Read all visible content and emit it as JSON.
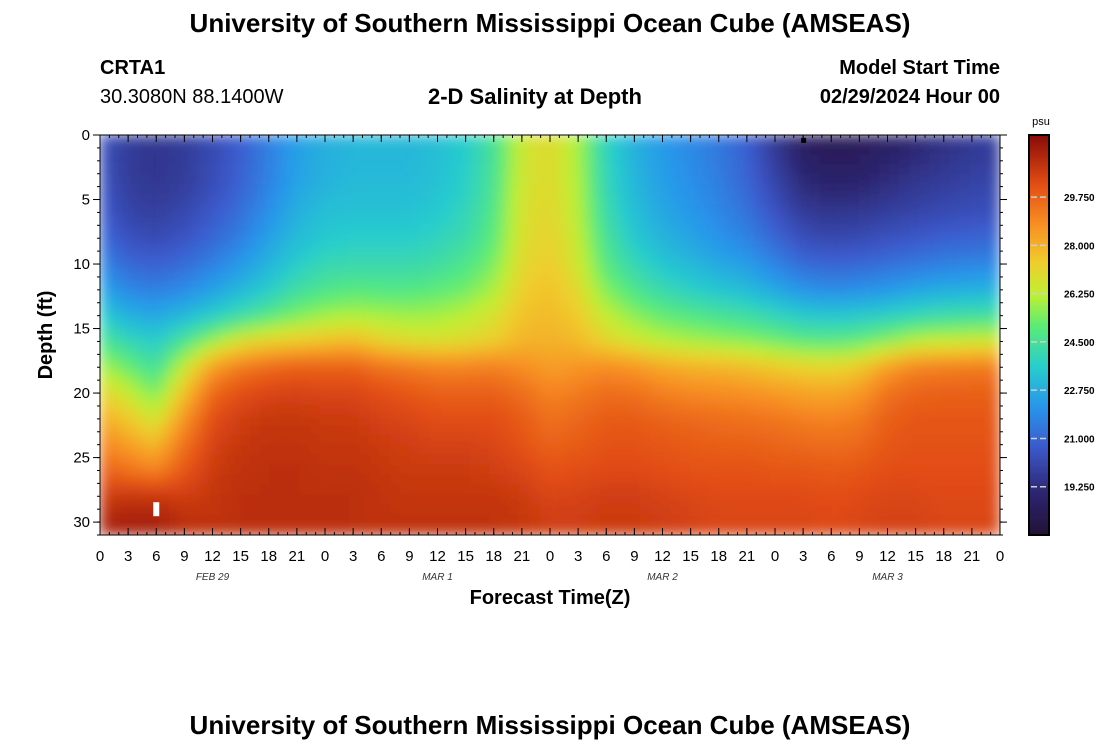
{
  "page_title": "University of Southern Mississippi Ocean Cube (AMSEAS)",
  "footer_title": "University of Southern Mississippi Ocean Cube (AMSEAS)",
  "station": {
    "id": "CRTA1",
    "coords": "30.3080N  88.1400W"
  },
  "model_start": {
    "label": "Model Start Time",
    "value": "02/29/2024 Hour 00"
  },
  "chart_data": {
    "type": "heatmap",
    "title": "2-D Salinity at Depth",
    "xlabel": "Forecast Time(Z)",
    "ylabel": "Depth (ft)",
    "x_unit": "hours since model start",
    "xlim": [
      0,
      96
    ],
    "ylim": [
      0,
      31
    ],
    "y_inverted": true,
    "x_tick_labels": [
      "0",
      "3",
      "6",
      "9",
      "12",
      "15",
      "18",
      "21",
      "0",
      "3",
      "6",
      "9",
      "12",
      "15",
      "18",
      "21",
      "0",
      "3",
      "6",
      "9",
      "12",
      "15",
      "18",
      "21",
      "0",
      "3",
      "6",
      "9",
      "12",
      "15",
      "18",
      "21",
      "0"
    ],
    "y_ticks": [
      0,
      5,
      10,
      15,
      20,
      25,
      30
    ],
    "y_tick_labels": [
      "0",
      "5",
      "10",
      "15",
      "20",
      "25",
      "30"
    ],
    "day_labels": [
      {
        "label": "FEB 29",
        "hour": 12
      },
      {
        "label": "MAR 1",
        "hour": 36
      },
      {
        "label": "MAR 2",
        "hour": 60
      },
      {
        "label": "MAR 3",
        "hour": 84
      }
    ],
    "colorbar": {
      "unit": "psu",
      "min": 17.5,
      "max": 32.0,
      "tick_values": [
        19.25,
        21.0,
        22.75,
        24.5,
        26.25,
        28.0,
        29.75
      ],
      "tick_labels": [
        "19.250",
        "21.000",
        "22.750",
        "24.500",
        "26.250",
        "28.000",
        "29.750"
      ]
    },
    "description": "Low salinity (~19-20 psu) in upper 15 ft early Feb 29 and around Mar 3 hour 0-9; high salinity (~30-31 psu) below 17-18 ft; brief saline intrusion (~27 psu) through full column near Mar 1 hour 21-24.",
    "salinity_grid": {
      "x_hours": [
        0,
        3,
        6,
        9,
        12,
        15,
        18,
        21,
        24,
        27,
        30,
        33,
        36,
        39,
        42,
        45,
        48,
        51,
        54,
        57,
        60,
        63,
        66,
        69,
        72,
        75,
        78,
        81,
        84,
        87,
        90,
        93,
        96
      ],
      "depths": [
        0,
        2,
        4,
        6,
        8,
        10,
        12,
        14,
        16,
        18,
        20,
        22,
        24,
        26,
        28,
        30,
        31
      ],
      "values": [
        [
          20.5,
          19.8,
          19.6,
          19.8,
          20.2,
          20.8,
          21.6,
          22.4,
          22.8,
          23.0,
          23.0,
          23.0,
          23.2,
          23.6,
          24.5,
          26.5,
          27.0,
          26.0,
          23.8,
          22.8,
          22.2,
          21.8,
          21.4,
          20.8,
          19.6,
          18.6,
          18.2,
          18.3,
          18.6,
          19.0,
          19.3,
          19.6,
          19.8
        ],
        [
          20.5,
          19.7,
          19.5,
          19.7,
          20.2,
          20.8,
          21.6,
          22.4,
          22.8,
          23.0,
          23.0,
          23.0,
          23.2,
          23.6,
          24.5,
          26.5,
          27.0,
          26.0,
          23.9,
          22.9,
          22.3,
          21.9,
          21.5,
          20.9,
          19.8,
          18.8,
          18.5,
          18.6,
          18.9,
          19.2,
          19.5,
          19.7,
          19.9
        ],
        [
          20.6,
          19.8,
          19.6,
          19.8,
          20.3,
          20.9,
          21.7,
          22.5,
          22.9,
          23.1,
          23.1,
          23.1,
          23.3,
          23.7,
          24.6,
          26.6,
          27.0,
          26.1,
          24.0,
          23.0,
          22.4,
          22.0,
          21.6,
          21.0,
          20.1,
          19.2,
          18.9,
          19.0,
          19.3,
          19.6,
          19.8,
          20.0,
          20.1
        ],
        [
          20.8,
          20.0,
          19.8,
          20.1,
          20.6,
          21.2,
          22.0,
          22.8,
          23.2,
          23.3,
          23.3,
          23.3,
          23.5,
          23.9,
          24.8,
          26.7,
          27.1,
          26.2,
          24.2,
          23.2,
          22.6,
          22.2,
          21.8,
          21.3,
          20.5,
          19.7,
          19.5,
          19.6,
          19.8,
          20.0,
          20.2,
          20.3,
          20.4
        ],
        [
          21.2,
          20.4,
          20.2,
          20.5,
          21.0,
          21.6,
          22.4,
          23.1,
          23.5,
          23.6,
          23.6,
          23.6,
          23.8,
          24.2,
          25.0,
          26.8,
          27.2,
          26.4,
          24.5,
          23.5,
          22.9,
          22.5,
          22.1,
          21.7,
          21.0,
          20.3,
          20.1,
          20.2,
          20.4,
          20.6,
          20.8,
          20.9,
          21.0
        ],
        [
          21.8,
          21.0,
          20.8,
          21.1,
          21.6,
          22.2,
          22.9,
          23.6,
          24.0,
          24.1,
          24.1,
          24.1,
          24.3,
          24.7,
          25.4,
          27.0,
          27.4,
          26.6,
          24.9,
          24.0,
          23.4,
          23.0,
          22.6,
          22.3,
          21.7,
          21.1,
          20.9,
          21.0,
          21.2,
          21.4,
          21.6,
          21.7,
          21.8
        ],
        [
          22.6,
          21.8,
          21.6,
          21.9,
          22.4,
          23.0,
          23.6,
          24.3,
          24.7,
          24.9,
          24.8,
          24.8,
          25.0,
          25.3,
          26.0,
          27.3,
          27.6,
          27.0,
          25.5,
          24.7,
          24.1,
          23.7,
          23.4,
          23.1,
          22.6,
          22.1,
          21.9,
          22.0,
          22.2,
          22.5,
          22.7,
          22.8,
          22.9
        ],
        [
          23.6,
          22.8,
          22.6,
          23.0,
          23.6,
          24.2,
          24.8,
          25.4,
          25.8,
          26.0,
          25.9,
          25.8,
          25.9,
          26.2,
          26.7,
          27.6,
          27.8,
          27.4,
          26.3,
          25.6,
          25.1,
          24.8,
          24.5,
          24.3,
          23.9,
          23.5,
          23.4,
          23.5,
          23.7,
          24.0,
          24.2,
          24.3,
          24.4
        ],
        [
          24.8,
          24.0,
          23.6,
          24.6,
          25.8,
          26.8,
          27.2,
          27.4,
          27.6,
          27.8,
          27.2,
          26.9,
          26.8,
          27.0,
          27.3,
          27.9,
          28.0,
          27.8,
          27.1,
          26.6,
          26.2,
          26.0,
          25.8,
          25.6,
          25.3,
          25.0,
          24.9,
          25.1,
          25.6,
          26.2,
          26.4,
          26.5,
          26.6
        ],
        [
          26.0,
          25.2,
          24.4,
          26.4,
          28.4,
          29.2,
          29.6,
          29.8,
          29.8,
          29.8,
          29.4,
          29.2,
          29.0,
          29.0,
          29.1,
          28.8,
          28.4,
          28.6,
          28.8,
          28.6,
          28.2,
          28.0,
          27.9,
          27.7,
          27.4,
          27.2,
          27.1,
          27.4,
          28.4,
          29.0,
          29.1,
          29.2,
          29.2
        ],
        [
          27.2,
          26.4,
          25.4,
          27.6,
          29.6,
          30.2,
          30.4,
          30.5,
          30.4,
          30.4,
          30.2,
          30.0,
          29.8,
          29.8,
          29.8,
          29.5,
          29.0,
          29.2,
          29.5,
          29.4,
          29.1,
          28.9,
          28.8,
          28.7,
          28.5,
          28.3,
          28.2,
          28.5,
          29.4,
          29.7,
          29.8,
          29.8,
          29.8
        ],
        [
          28.2,
          27.4,
          26.6,
          28.6,
          30.2,
          30.6,
          30.8,
          30.8,
          30.7,
          30.7,
          30.5,
          30.4,
          30.2,
          30.2,
          30.2,
          29.9,
          29.4,
          29.6,
          29.9,
          29.9,
          29.7,
          29.6,
          29.5,
          29.4,
          29.3,
          29.1,
          29.0,
          29.2,
          29.8,
          30.0,
          30.0,
          30.0,
          30.0
        ],
        [
          29.0,
          28.4,
          27.8,
          29.4,
          30.5,
          30.8,
          30.9,
          30.9,
          30.8,
          30.8,
          30.7,
          30.6,
          30.5,
          30.5,
          30.4,
          30.1,
          29.7,
          29.9,
          30.1,
          30.1,
          30.0,
          29.9,
          29.8,
          29.8,
          29.7,
          29.6,
          29.5,
          29.6,
          30.0,
          30.1,
          30.1,
          30.1,
          30.1
        ],
        [
          29.8,
          29.4,
          29.0,
          30.0,
          30.7,
          30.9,
          31.0,
          31.0,
          30.9,
          30.9,
          30.8,
          30.7,
          30.7,
          30.7,
          30.6,
          30.4,
          30.1,
          30.2,
          30.3,
          30.3,
          30.2,
          30.1,
          30.1,
          30.1,
          30.0,
          30.0,
          29.9,
          30.0,
          30.2,
          30.2,
          30.2,
          30.2,
          30.2
        ],
        [
          30.6,
          30.8,
          30.8,
          30.6,
          30.8,
          31.0,
          31.0,
          31.0,
          31.0,
          31.0,
          30.9,
          30.8,
          30.8,
          30.8,
          30.8,
          30.7,
          30.4,
          30.5,
          30.6,
          30.6,
          30.5,
          30.4,
          30.3,
          30.3,
          30.3,
          30.3,
          30.2,
          30.3,
          30.4,
          30.4,
          30.3,
          30.3,
          30.3
        ],
        [
          31.2,
          31.4,
          31.4,
          31.0,
          30.9,
          31.0,
          31.0,
          31.0,
          31.0,
          31.0,
          30.9,
          30.9,
          30.9,
          30.9,
          30.9,
          30.8,
          30.6,
          30.6,
          30.7,
          30.7,
          30.6,
          30.5,
          30.4,
          30.4,
          30.4,
          30.4,
          30.3,
          30.4,
          30.5,
          30.5,
          30.4,
          30.4,
          30.4
        ],
        [
          31.2,
          31.4,
          31.4,
          31.0,
          30.9,
          31.0,
          31.0,
          31.0,
          31.0,
          31.0,
          30.9,
          30.9,
          30.9,
          30.9,
          30.9,
          30.8,
          30.6,
          30.6,
          30.7,
          30.7,
          30.6,
          30.5,
          30.4,
          30.4,
          30.4,
          30.4,
          30.3,
          30.4,
          30.5,
          30.5,
          30.4,
          30.4,
          30.4
        ]
      ]
    },
    "markers": [
      {
        "hour": 6,
        "depth": 29,
        "color": "#ffffff"
      },
      {
        "hour": 75,
        "depth": 0.3,
        "color": "#000000"
      }
    ]
  }
}
